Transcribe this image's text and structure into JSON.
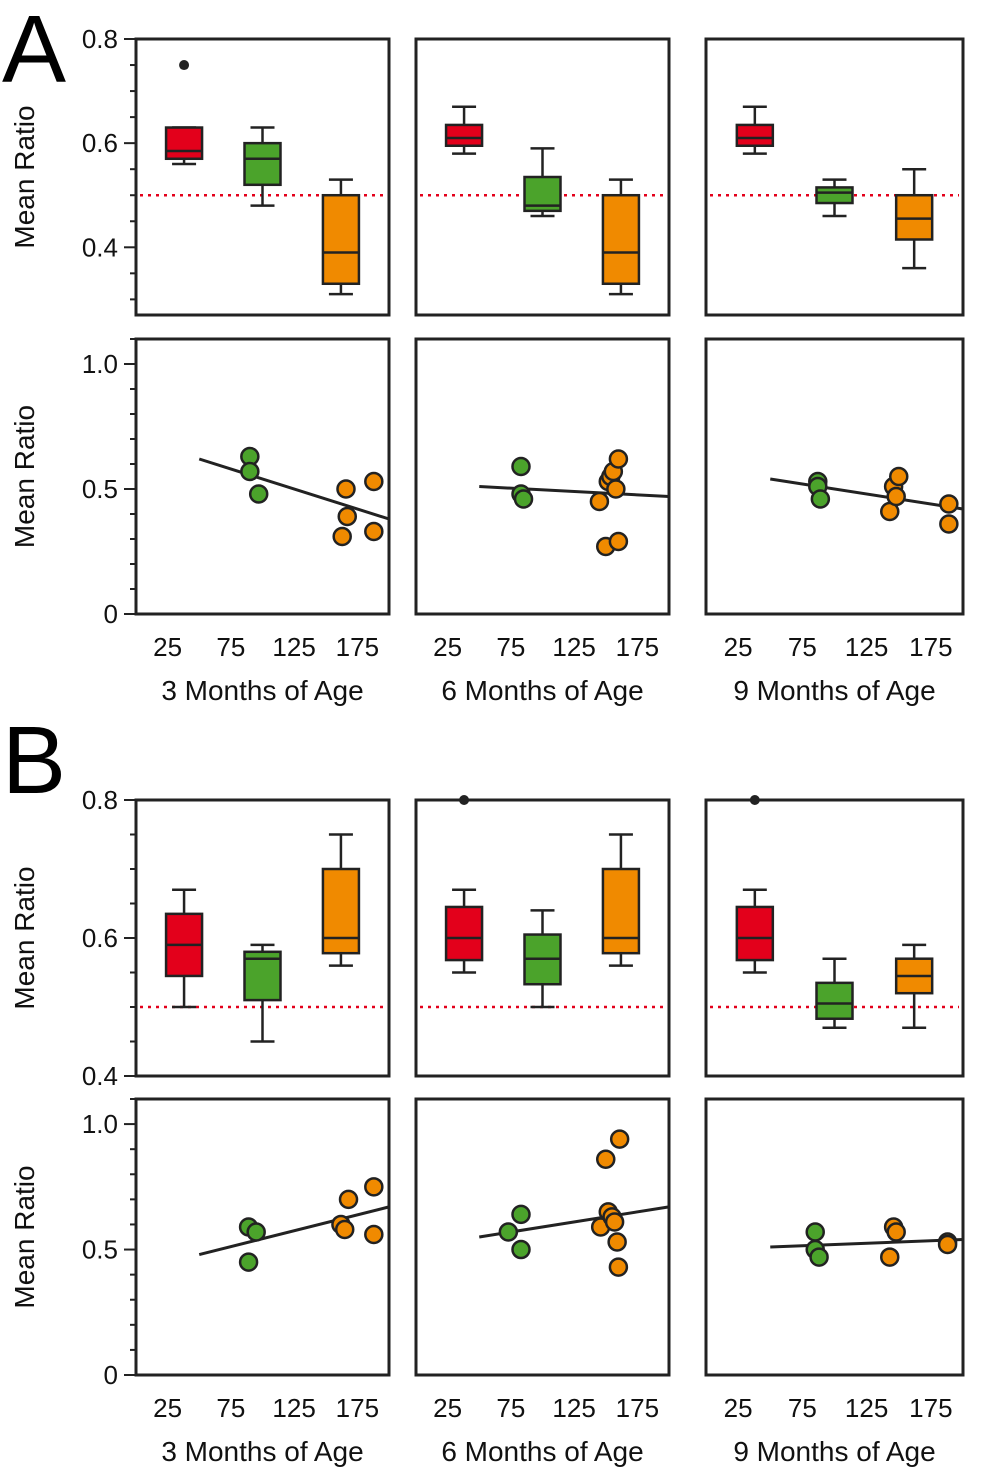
{
  "figure": {
    "panel_letters": [
      "A",
      "B"
    ],
    "colors": {
      "red": "#e3001b",
      "green": "#4ba32b",
      "orange": "#f08a00",
      "ink": "#222222",
      "ref_line": "#e3001b"
    },
    "x_titles": [
      "3 Months of Age",
      "6 Months of Age",
      "9 Months of Age"
    ],
    "y_title": "Mean Ratio"
  },
  "chart_data": [
    {
      "id": "A-box-3m",
      "panel": "A",
      "type": "box",
      "title": "3 Months of Age",
      "ylabel": "Mean Ratio",
      "ylim": [
        0.27,
        0.8
      ],
      "yticks": [
        "0.4",
        "0.6",
        "0.8"
      ],
      "reference_y": 0.5,
      "boxes": [
        {
          "group": "red",
          "whisker_low": 0.56,
          "q1": 0.57,
          "median": 0.585,
          "q3": 0.63,
          "whisker_high": 0.63,
          "outliers": [
            0.75
          ]
        },
        {
          "group": "green",
          "whisker_low": 0.48,
          "q1": 0.52,
          "median": 0.57,
          "q3": 0.6,
          "whisker_high": 0.63,
          "outliers": []
        },
        {
          "group": "orange",
          "whisker_low": 0.31,
          "q1": 0.33,
          "median": 0.39,
          "q3": 0.5,
          "whisker_high": 0.53,
          "outliers": []
        }
      ]
    },
    {
      "id": "A-box-6m",
      "panel": "A",
      "type": "box",
      "title": "6 Months of Age",
      "ylabel": "Mean Ratio",
      "ylim": [
        0.27,
        0.8
      ],
      "yticks": [
        "0.4",
        "0.6",
        "0.8"
      ],
      "reference_y": 0.5,
      "boxes": [
        {
          "group": "red",
          "whisker_low": 0.58,
          "q1": 0.595,
          "median": 0.61,
          "q3": 0.635,
          "whisker_high": 0.67,
          "outliers": []
        },
        {
          "group": "green",
          "whisker_low": 0.46,
          "q1": 0.47,
          "median": 0.48,
          "q3": 0.535,
          "whisker_high": 0.59,
          "outliers": []
        },
        {
          "group": "orange",
          "whisker_low": 0.31,
          "q1": 0.33,
          "median": 0.39,
          "q3": 0.5,
          "whisker_high": 0.53,
          "outliers": []
        }
      ]
    },
    {
      "id": "A-box-9m",
      "panel": "A",
      "type": "box",
      "title": "9 Months of Age",
      "ylabel": "Mean Ratio",
      "ylim": [
        0.27,
        0.8
      ],
      "yticks": [
        "0.4",
        "0.6",
        "0.8"
      ],
      "reference_y": 0.5,
      "boxes": [
        {
          "group": "red",
          "whisker_low": 0.58,
          "q1": 0.595,
          "median": 0.61,
          "q3": 0.635,
          "whisker_high": 0.67,
          "outliers": []
        },
        {
          "group": "green",
          "whisker_low": 0.46,
          "q1": 0.485,
          "median": 0.505,
          "q3": 0.515,
          "whisker_high": 0.53,
          "outliers": []
        },
        {
          "group": "orange",
          "whisker_low": 0.36,
          "q1": 0.415,
          "median": 0.455,
          "q3": 0.5,
          "whisker_high": 0.55,
          "outliers": []
        }
      ]
    },
    {
      "id": "A-scatter-3m",
      "panel": "A",
      "type": "scatter",
      "title": "3 Months of Age",
      "xlabel": "3 Months of Age",
      "ylabel": "Mean Ratio",
      "xlim": [
        0,
        200
      ],
      "ylim": [
        0,
        1.1
      ],
      "xticks": [
        25,
        75,
        125,
        175
      ],
      "yticks": [
        "0",
        "0.5",
        "1.0"
      ],
      "points": [
        {
          "x": 90,
          "y": 0.63,
          "group": "green"
        },
        {
          "x": 90,
          "y": 0.57,
          "group": "green"
        },
        {
          "x": 97,
          "y": 0.48,
          "group": "green"
        },
        {
          "x": 163,
          "y": 0.31,
          "group": "orange"
        },
        {
          "x": 166,
          "y": 0.5,
          "group": "orange"
        },
        {
          "x": 167,
          "y": 0.39,
          "group": "orange"
        },
        {
          "x": 188,
          "y": 0.53,
          "group": "orange"
        },
        {
          "x": 188,
          "y": 0.33,
          "group": "orange"
        }
      ],
      "fit": {
        "x": [
          50,
          200
        ],
        "y": [
          0.62,
          0.38
        ]
      }
    },
    {
      "id": "A-scatter-6m",
      "panel": "A",
      "type": "scatter",
      "title": "6 Months of Age",
      "xlabel": "6 Months of Age",
      "ylabel": "Mean Ratio",
      "xlim": [
        0,
        200
      ],
      "ylim": [
        0,
        1.1
      ],
      "xticks": [
        25,
        75,
        125,
        175
      ],
      "yticks": [
        "0",
        "0.5",
        "1.0"
      ],
      "points": [
        {
          "x": 83,
          "y": 0.59,
          "group": "green"
        },
        {
          "x": 83,
          "y": 0.48,
          "group": "green"
        },
        {
          "x": 85,
          "y": 0.46,
          "group": "green"
        },
        {
          "x": 145,
          "y": 0.45,
          "group": "orange"
        },
        {
          "x": 150,
          "y": 0.27,
          "group": "orange"
        },
        {
          "x": 152,
          "y": 0.53,
          "group": "orange"
        },
        {
          "x": 154,
          "y": 0.55,
          "group": "orange"
        },
        {
          "x": 156,
          "y": 0.57,
          "group": "orange"
        },
        {
          "x": 158,
          "y": 0.5,
          "group": "orange"
        },
        {
          "x": 160,
          "y": 0.62,
          "group": "orange"
        },
        {
          "x": 160,
          "y": 0.29,
          "group": "orange"
        }
      ],
      "fit": {
        "x": [
          50,
          200
        ],
        "y": [
          0.51,
          0.47
        ]
      }
    },
    {
      "id": "A-scatter-9m",
      "panel": "A",
      "type": "scatter",
      "title": "9 Months of Age",
      "xlabel": "9 Months of Age",
      "ylabel": "Mean Ratio",
      "xlim": [
        0,
        200
      ],
      "ylim": [
        0,
        1.1
      ],
      "xticks": [
        25,
        75,
        125,
        175
      ],
      "yticks": [
        "0",
        "0.5",
        "1.0"
      ],
      "points": [
        {
          "x": 87,
          "y": 0.53,
          "group": "green"
        },
        {
          "x": 87,
          "y": 0.51,
          "group": "green"
        },
        {
          "x": 89,
          "y": 0.46,
          "group": "green"
        },
        {
          "x": 143,
          "y": 0.41,
          "group": "orange"
        },
        {
          "x": 146,
          "y": 0.51,
          "group": "orange"
        },
        {
          "x": 148,
          "y": 0.47,
          "group": "orange"
        },
        {
          "x": 150,
          "y": 0.55,
          "group": "orange"
        },
        {
          "x": 189,
          "y": 0.44,
          "group": "orange"
        },
        {
          "x": 189,
          "y": 0.36,
          "group": "orange"
        }
      ],
      "fit": {
        "x": [
          50,
          200
        ],
        "y": [
          0.54,
          0.42
        ]
      }
    },
    {
      "id": "B-box-3m",
      "panel": "B",
      "type": "box",
      "title": "3 Months of Age",
      "ylabel": "Mean Ratio",
      "ylim": [
        0.4,
        0.8
      ],
      "yticks": [
        "0.4",
        "0.6",
        "0.8"
      ],
      "reference_y": 0.5,
      "boxes": [
        {
          "group": "red",
          "whisker_low": 0.5,
          "q1": 0.545,
          "median": 0.59,
          "q3": 0.635,
          "whisker_high": 0.67,
          "outliers": []
        },
        {
          "group": "green",
          "whisker_low": 0.45,
          "q1": 0.51,
          "median": 0.57,
          "q3": 0.58,
          "whisker_high": 0.59,
          "outliers": []
        },
        {
          "group": "orange",
          "whisker_low": 0.56,
          "q1": 0.578,
          "median": 0.6,
          "q3": 0.7,
          "whisker_high": 0.75,
          "outliers": []
        }
      ]
    },
    {
      "id": "B-box-6m",
      "panel": "B",
      "type": "box",
      "title": "6 Months of Age",
      "ylabel": "Mean Ratio",
      "ylim": [
        0.4,
        0.8
      ],
      "yticks": [
        "0.4",
        "0.6",
        "0.8"
      ],
      "reference_y": 0.5,
      "boxes": [
        {
          "group": "red",
          "whisker_low": 0.55,
          "q1": 0.568,
          "median": 0.6,
          "q3": 0.645,
          "whisker_high": 0.67,
          "outliers": [
            0.8
          ]
        },
        {
          "group": "green",
          "whisker_low": 0.5,
          "q1": 0.533,
          "median": 0.57,
          "q3": 0.605,
          "whisker_high": 0.64,
          "outliers": []
        },
        {
          "group": "orange",
          "whisker_low": 0.56,
          "q1": 0.578,
          "median": 0.6,
          "q3": 0.7,
          "whisker_high": 0.75,
          "outliers": []
        }
      ]
    },
    {
      "id": "B-box-9m",
      "panel": "B",
      "type": "box",
      "title": "9 Months of Age",
      "ylabel": "Mean Ratio",
      "ylim": [
        0.4,
        0.8
      ],
      "yticks": [
        "0.4",
        "0.6",
        "0.8"
      ],
      "reference_y": 0.5,
      "boxes": [
        {
          "group": "red",
          "whisker_low": 0.55,
          "q1": 0.568,
          "median": 0.6,
          "q3": 0.645,
          "whisker_high": 0.67,
          "outliers": [
            0.8
          ]
        },
        {
          "group": "green",
          "whisker_low": 0.47,
          "q1": 0.483,
          "median": 0.505,
          "q3": 0.535,
          "whisker_high": 0.57,
          "outliers": []
        },
        {
          "group": "orange",
          "whisker_low": 0.47,
          "q1": 0.52,
          "median": 0.545,
          "q3": 0.57,
          "whisker_high": 0.59,
          "outliers": []
        }
      ]
    },
    {
      "id": "B-scatter-3m",
      "panel": "B",
      "type": "scatter",
      "title": "3 Months of Age",
      "xlabel": "3 Months of Age",
      "ylabel": "Mean Ratio",
      "xlim": [
        0,
        200
      ],
      "ylim": [
        0,
        1.1
      ],
      "xticks": [
        25,
        75,
        125,
        175
      ],
      "yticks": [
        "0",
        "0.5",
        "1.0"
      ],
      "points": [
        {
          "x": 89,
          "y": 0.59,
          "group": "green"
        },
        {
          "x": 95,
          "y": 0.57,
          "group": "green"
        },
        {
          "x": 89,
          "y": 0.45,
          "group": "green"
        },
        {
          "x": 162,
          "y": 0.6,
          "group": "orange"
        },
        {
          "x": 165,
          "y": 0.58,
          "group": "orange"
        },
        {
          "x": 168,
          "y": 0.7,
          "group": "orange"
        },
        {
          "x": 188,
          "y": 0.75,
          "group": "orange"
        },
        {
          "x": 188,
          "y": 0.56,
          "group": "orange"
        }
      ],
      "fit": {
        "x": [
          50,
          200
        ],
        "y": [
          0.48,
          0.67
        ]
      }
    },
    {
      "id": "B-scatter-6m",
      "panel": "B",
      "type": "scatter",
      "title": "6 Months of Age",
      "xlabel": "6 Months of Age",
      "ylabel": "Mean Ratio",
      "xlim": [
        0,
        200
      ],
      "ylim": [
        0,
        1.1
      ],
      "xticks": [
        25,
        75,
        125,
        175
      ],
      "yticks": [
        "0",
        "0.5",
        "1.0"
      ],
      "points": [
        {
          "x": 73,
          "y": 0.57,
          "group": "green"
        },
        {
          "x": 83,
          "y": 0.64,
          "group": "green"
        },
        {
          "x": 83,
          "y": 0.5,
          "group": "green"
        },
        {
          "x": 146,
          "y": 0.59,
          "group": "orange"
        },
        {
          "x": 150,
          "y": 0.86,
          "group": "orange"
        },
        {
          "x": 152,
          "y": 0.65,
          "group": "orange"
        },
        {
          "x": 155,
          "y": 0.63,
          "group": "orange"
        },
        {
          "x": 157,
          "y": 0.61,
          "group": "orange"
        },
        {
          "x": 159,
          "y": 0.53,
          "group": "orange"
        },
        {
          "x": 160,
          "y": 0.43,
          "group": "orange"
        },
        {
          "x": 161,
          "y": 0.94,
          "group": "orange"
        }
      ],
      "fit": {
        "x": [
          50,
          200
        ],
        "y": [
          0.55,
          0.67
        ]
      }
    },
    {
      "id": "B-scatter-9m",
      "panel": "B",
      "type": "scatter",
      "title": "9 Months of Age",
      "xlabel": "9 Months of Age",
      "ylabel": "Mean Ratio",
      "xlim": [
        0,
        200
      ],
      "ylim": [
        0,
        1.1
      ],
      "xticks": [
        25,
        75,
        125,
        175
      ],
      "yticks": [
        "0",
        "0.5",
        "1.0"
      ],
      "points": [
        {
          "x": 85,
          "y": 0.57,
          "group": "green"
        },
        {
          "x": 85,
          "y": 0.5,
          "group": "green"
        },
        {
          "x": 88,
          "y": 0.47,
          "group": "green"
        },
        {
          "x": 143,
          "y": 0.47,
          "group": "orange"
        },
        {
          "x": 146,
          "y": 0.59,
          "group": "orange"
        },
        {
          "x": 148,
          "y": 0.57,
          "group": "orange"
        },
        {
          "x": 188,
          "y": 0.53,
          "group": "orange"
        },
        {
          "x": 188,
          "y": 0.52,
          "group": "orange"
        }
      ],
      "fit": {
        "x": [
          50,
          200
        ],
        "y": [
          0.51,
          0.54
        ]
      }
    }
  ]
}
